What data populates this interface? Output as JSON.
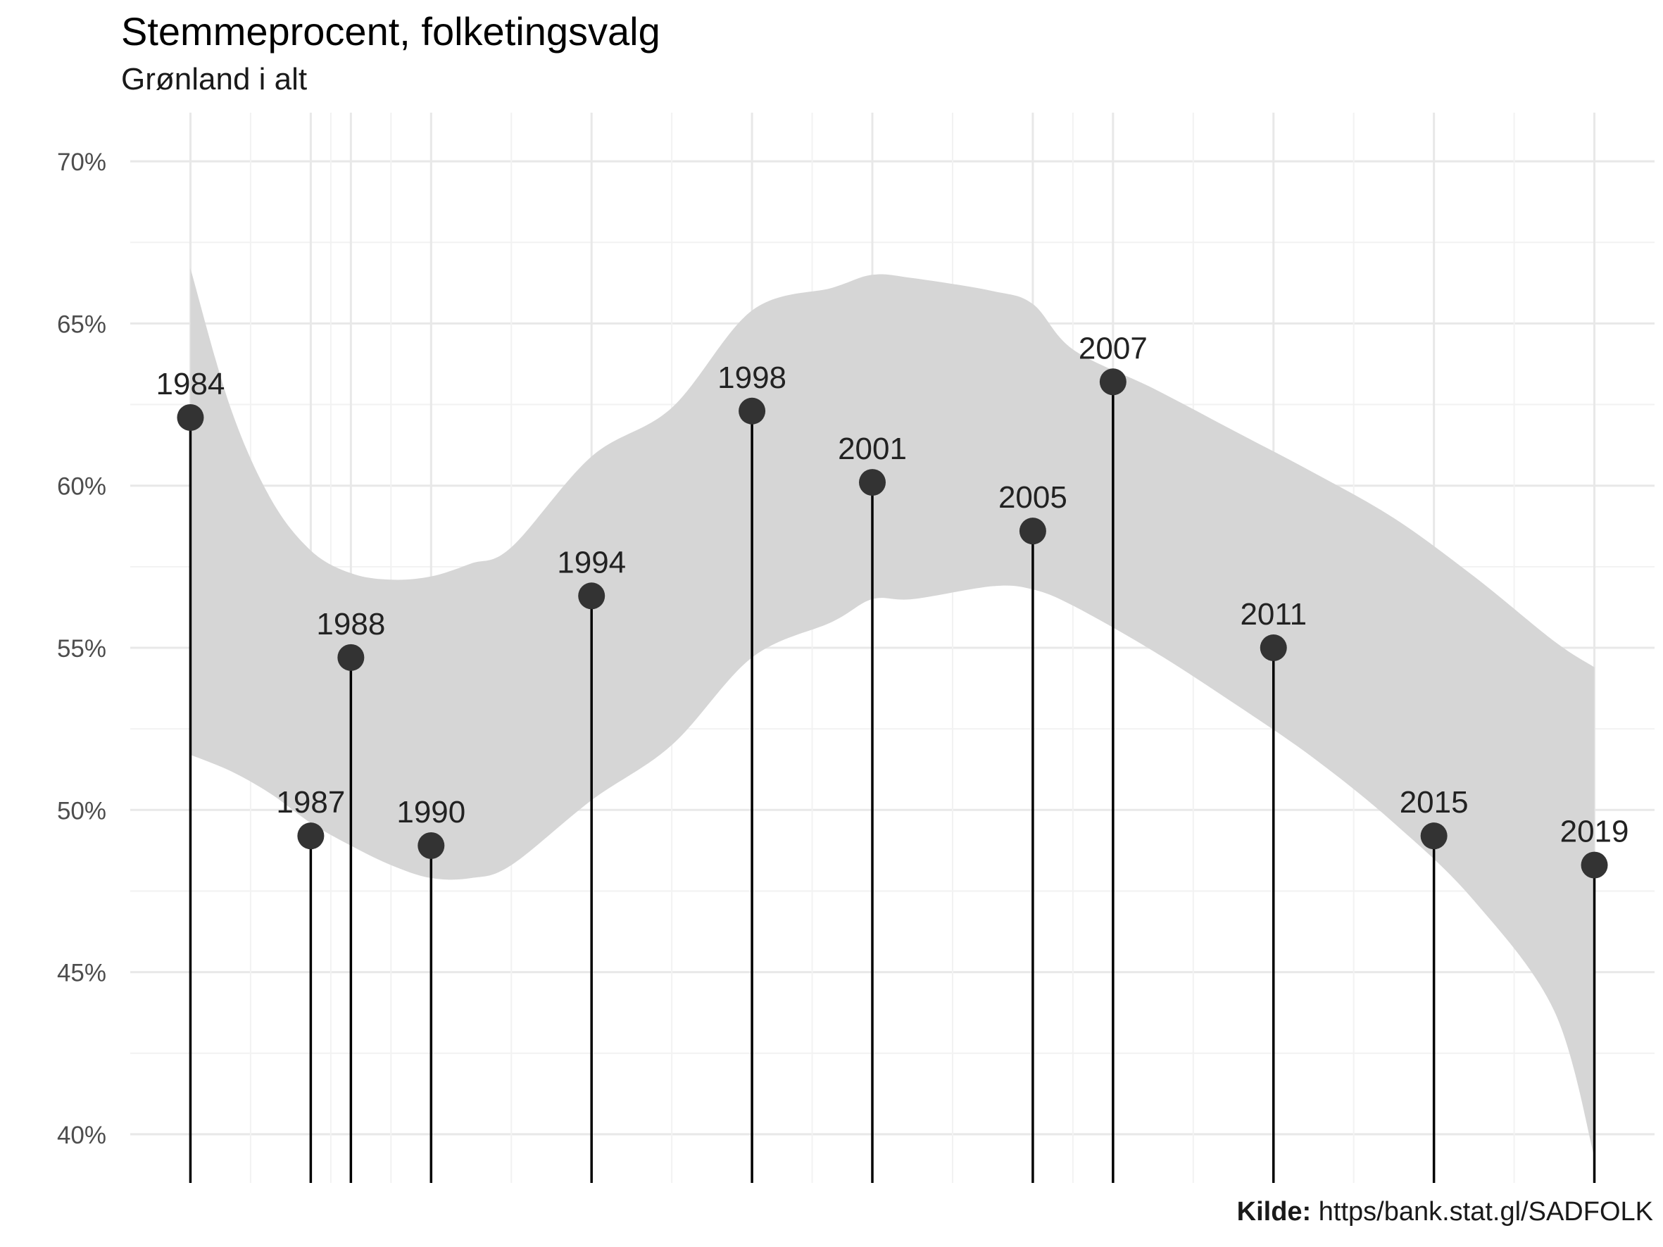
{
  "chart_data": {
    "type": "lollipop",
    "title": "Stemmeprocent, folketingsvalg",
    "subtitle": "Grønland i alt",
    "caption_label": "Kilde:",
    "caption_text": "https/bank.stat.gl/SADFOLK",
    "xlabel": "",
    "ylabel": "",
    "ylim": [
      38.5,
      71.5
    ],
    "xlim": [
      1982.5,
      2020.5
    ],
    "y_ticks": [
      40,
      45,
      50,
      55,
      60,
      65,
      70
    ],
    "y_tick_labels": [
      "40%",
      "45%",
      "50%",
      "55%",
      "60%",
      "65%",
      "70%"
    ],
    "grid": true,
    "legend": "none",
    "colors": {
      "point": "#333333",
      "stem": "#000000",
      "ribbon": "#d6d6d6",
      "grid_major": "#e8e8e8",
      "grid_minor": "#f2f2f2",
      "tick_label": "#4d4d4d"
    },
    "points": [
      {
        "x": 1984,
        "label": "1984",
        "value": 62.1
      },
      {
        "x": 1987,
        "label": "1987",
        "value": 49.2
      },
      {
        "x": 1988,
        "label": "1988",
        "value": 54.7
      },
      {
        "x": 1990,
        "label": "1990",
        "value": 48.9
      },
      {
        "x": 1994,
        "label": "1994",
        "value": 56.6
      },
      {
        "x": 1998,
        "label": "1998",
        "value": 62.3
      },
      {
        "x": 2001,
        "label": "2001",
        "value": 60.1
      },
      {
        "x": 2005,
        "label": "2005",
        "value": 58.6
      },
      {
        "x": 2007,
        "label": "2007",
        "value": 63.2
      },
      {
        "x": 2011,
        "label": "2011",
        "value": 55.0
      },
      {
        "x": 2015,
        "label": "2015",
        "value": 49.2
      },
      {
        "x": 2019,
        "label": "2019",
        "value": 48.3
      }
    ],
    "confidence_band": {
      "x": [
        1984,
        1985,
        1986,
        1987,
        1988,
        1989,
        1990,
        1991,
        1992,
        1994,
        1996,
        1998,
        2000,
        2001,
        2002,
        2004,
        2005,
        2006,
        2008,
        2010,
        2012,
        2014,
        2016,
        2018,
        2019
      ],
      "upper": [
        66.7,
        62.4,
        59.6,
        58.0,
        57.3,
        57.1,
        57.2,
        57.6,
        58.1,
        60.9,
        62.4,
        65.4,
        66.1,
        66.5,
        66.4,
        66.0,
        65.6,
        64.2,
        63.0,
        61.7,
        60.4,
        59.0,
        57.2,
        55.2,
        54.4
      ],
      "lower": [
        51.7,
        51.2,
        50.5,
        49.6,
        48.9,
        48.3,
        47.9,
        47.9,
        48.3,
        50.3,
        52.0,
        54.7,
        55.8,
        56.5,
        56.5,
        56.9,
        56.8,
        56.3,
        54.9,
        53.3,
        51.6,
        49.6,
        47.2,
        43.8,
        39.3
      ]
    }
  }
}
